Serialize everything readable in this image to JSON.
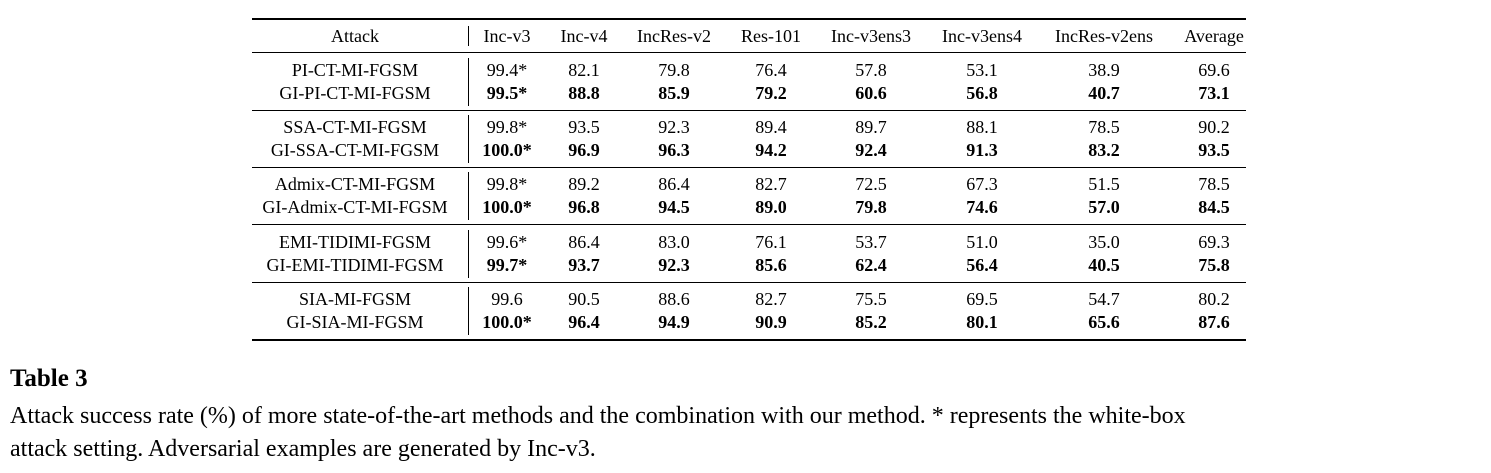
{
  "table": {
    "header": [
      "Attack",
      "Inc-v3",
      "Inc-v4",
      "IncRes-v2",
      "Res-101",
      "Inc-v3ens3",
      "Inc-v3ens4",
      "IncRes-v2ens",
      "Average"
    ],
    "groups": [
      {
        "rows": [
          [
            "PI-CT-MI-FGSM",
            "99.4*",
            "82.1",
            "79.8",
            "76.4",
            "57.8",
            "53.1",
            "38.9",
            "69.6"
          ],
          [
            "GI-PI-CT-MI-FGSM",
            "99.5*",
            "88.8",
            "85.9",
            "79.2",
            "60.6",
            "56.8",
            "40.7",
            "73.1"
          ]
        ]
      },
      {
        "rows": [
          [
            "SSA-CT-MI-FGSM",
            "99.8*",
            "93.5",
            "92.3",
            "89.4",
            "89.7",
            "88.1",
            "78.5",
            "90.2"
          ],
          [
            "GI-SSA-CT-MI-FGSM",
            "100.0*",
            "96.9",
            "96.3",
            "94.2",
            "92.4",
            "91.3",
            "83.2",
            "93.5"
          ]
        ]
      },
      {
        "rows": [
          [
            "Admix-CT-MI-FGSM",
            "99.8*",
            "89.2",
            "86.4",
            "82.7",
            "72.5",
            "67.3",
            "51.5",
            "78.5"
          ],
          [
            "GI-Admix-CT-MI-FGSM",
            "100.0*",
            "96.8",
            "94.5",
            "89.0",
            "79.8",
            "74.6",
            "57.0",
            "84.5"
          ]
        ]
      },
      {
        "rows": [
          [
            "EMI-TIDIMI-FGSM",
            "99.6*",
            "86.4",
            "83.0",
            "76.1",
            "53.7",
            "51.0",
            "35.0",
            "69.3"
          ],
          [
            "GI-EMI-TIDIMI-FGSM",
            "99.7*",
            "93.7",
            "92.3",
            "85.6",
            "62.4",
            "56.4",
            "40.5",
            "75.8"
          ]
        ]
      },
      {
        "rows": [
          [
            "SIA-MI-FGSM",
            "99.6",
            "90.5",
            "88.6",
            "82.7",
            "75.5",
            "69.5",
            "54.7",
            "80.2"
          ],
          [
            "GI-SIA-MI-FGSM",
            "100.0*",
            "96.4",
            "94.9",
            "90.9",
            "85.2",
            "80.1",
            "65.6",
            "87.6"
          ]
        ]
      }
    ]
  },
  "caption": {
    "label": "Table 3",
    "lines": [
      "Attack success rate (%) of more state-of-the-art methods and the combination with our method. * represents the white-box",
      "attack setting. Adversarial examples are generated by Inc-v3."
    ]
  }
}
